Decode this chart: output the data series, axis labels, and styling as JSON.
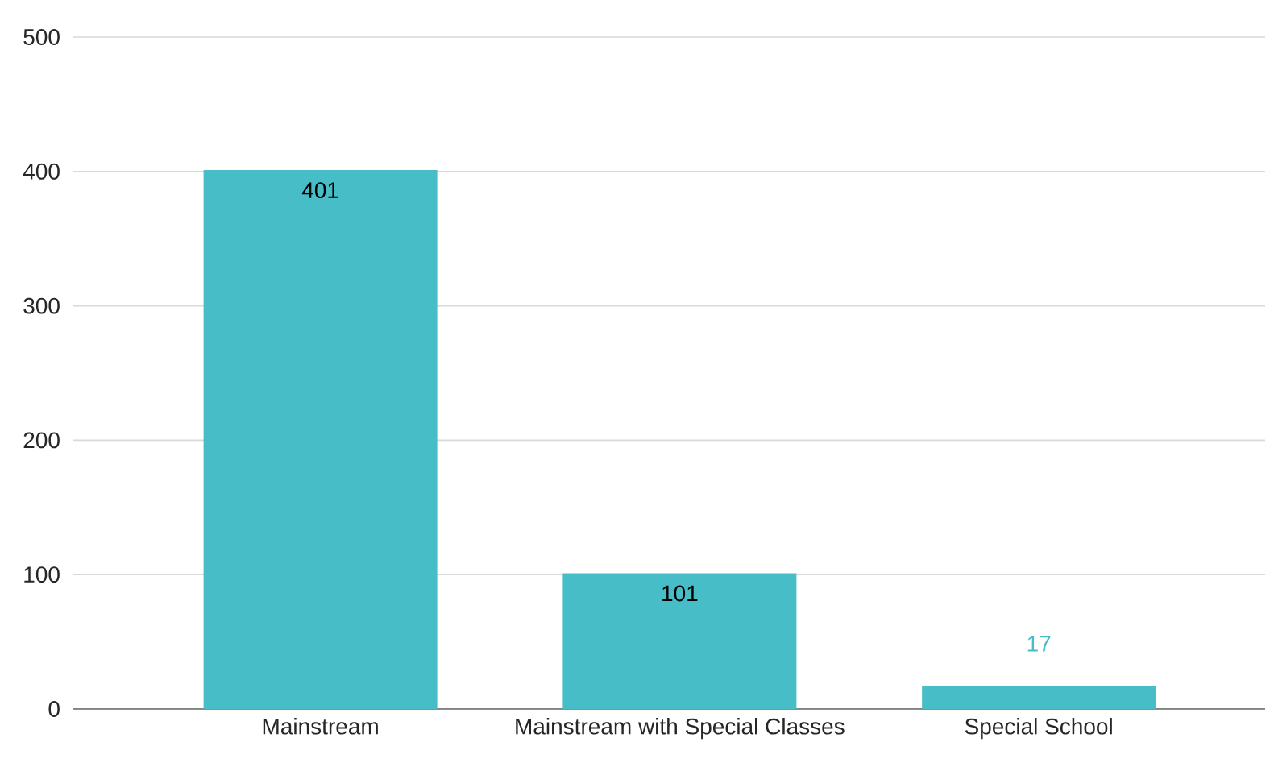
{
  "chart_data": {
    "type": "bar",
    "categories": [
      "Mainstream",
      "Mainstream with Special Classes",
      "Special School"
    ],
    "values": [
      401,
      101,
      17
    ],
    "color": "#47bdc7",
    "ylim": [
      0,
      500
    ],
    "yticks": [
      0,
      100,
      200,
      300,
      400,
      500
    ],
    "grid": "y",
    "data_labels": true
  }
}
